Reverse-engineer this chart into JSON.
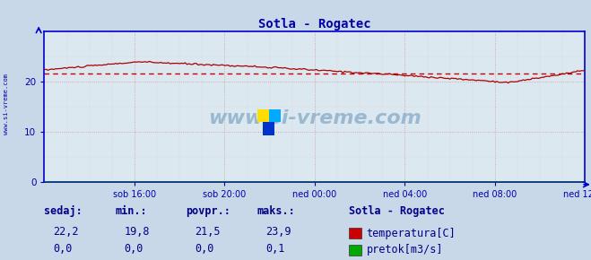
{
  "title": "Sotla - Rogatec",
  "title_color": "#0000aa",
  "bg_color": "#c8d8e8",
  "plot_bg_color": "#dce8f0",
  "grid_color_h": "#cc9999",
  "grid_color_v": "#cc9999",
  "axis_color": "#0000cc",
  "spine_color": "#0000cc",
  "tick_color": "#0000aa",
  "watermark_text": "www.si-vreme.com",
  "watermark_color": "#9ab8d0",
  "sidebar_text": "www.si-vreme.com",
  "sidebar_color": "#0000aa",
  "xlim": [
    0,
    288
  ],
  "ylim": [
    0,
    30
  ],
  "yticks": [
    0,
    10,
    20
  ],
  "xtick_labels": [
    "sob 16:00",
    "sob 20:00",
    "ned 00:00",
    "ned 04:00",
    "ned 08:00",
    "ned 12:00"
  ],
  "xtick_positions": [
    48,
    96,
    144,
    192,
    240,
    288
  ],
  "avg_line_value": 21.5,
  "avg_line_color": "#cc0000",
  "temp_line_color": "#aa0000",
  "flow_line_color": "#007700",
  "temp_min": 19.8,
  "temp_max": 23.9,
  "temp_avg": 21.5,
  "temp_current": 22.2,
  "flow_min": 0.0,
  "flow_max": 0.1,
  "flow_avg": 0.0,
  "flow_current": 0.0,
  "legend_title": "Sotla - Rogatec",
  "legend_items": [
    "temperatura[C]",
    "pretok[m3/s]"
  ],
  "legend_colors": [
    "#cc0000",
    "#00aa00"
  ],
  "footer_labels": [
    "sedaj:",
    "min.:",
    "povpr.:",
    "maks.:"
  ],
  "footer_color": "#000088",
  "footer_fontsize": 8.5
}
